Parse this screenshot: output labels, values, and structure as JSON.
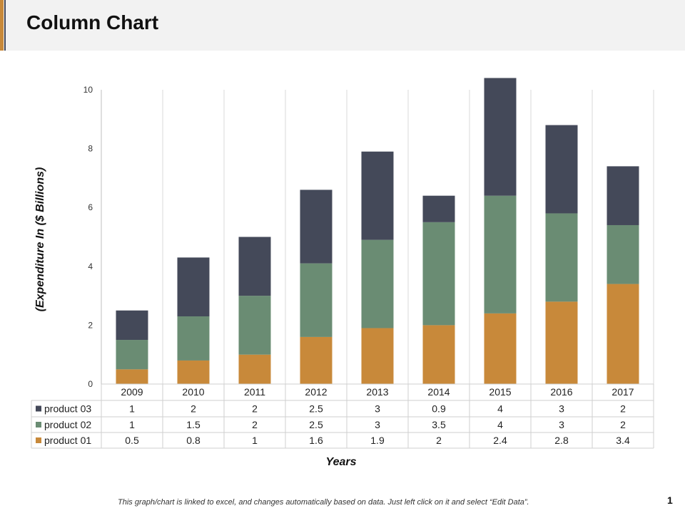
{
  "page": {
    "title": "Column Chart",
    "footnote": "This graph/chart is linked to excel, and changes automatically based on data. Just left click on it and select “Edit Data”.",
    "page_number": "1"
  },
  "colors": {
    "product_01": "#c8893a",
    "product_02": "#6a8c73",
    "product_03": "#444959",
    "header_bg": "#f2f2f2",
    "grid": "#d9d9d9"
  },
  "chart_data": {
    "type": "bar",
    "stacked": true,
    "categories": [
      "2009",
      "2010",
      "2011",
      "2012",
      "2013",
      "2014",
      "2015",
      "2016",
      "2017"
    ],
    "series": [
      {
        "name": "product 01",
        "values": [
          0.5,
          0.8,
          1,
          1.6,
          1.9,
          2,
          2.4,
          2.8,
          3.4
        ]
      },
      {
        "name": "product 02",
        "values": [
          1,
          1.5,
          2,
          2.5,
          3,
          3.5,
          4,
          3,
          2
        ]
      },
      {
        "name": "product 03",
        "values": [
          1,
          2,
          2,
          2.5,
          3,
          0.9,
          4,
          3,
          2
        ]
      }
    ],
    "table_series_order": [
      "product 03",
      "product 02",
      "product 01"
    ],
    "y_ticks": [
      "0",
      "2",
      "4",
      "6",
      "8",
      "10"
    ],
    "ylim": [
      0,
      10
    ],
    "xlabel": "Years",
    "ylabel": "(Expenditure  In ($ Billions)",
    "grid": "vertical",
    "legend": "data-table"
  }
}
